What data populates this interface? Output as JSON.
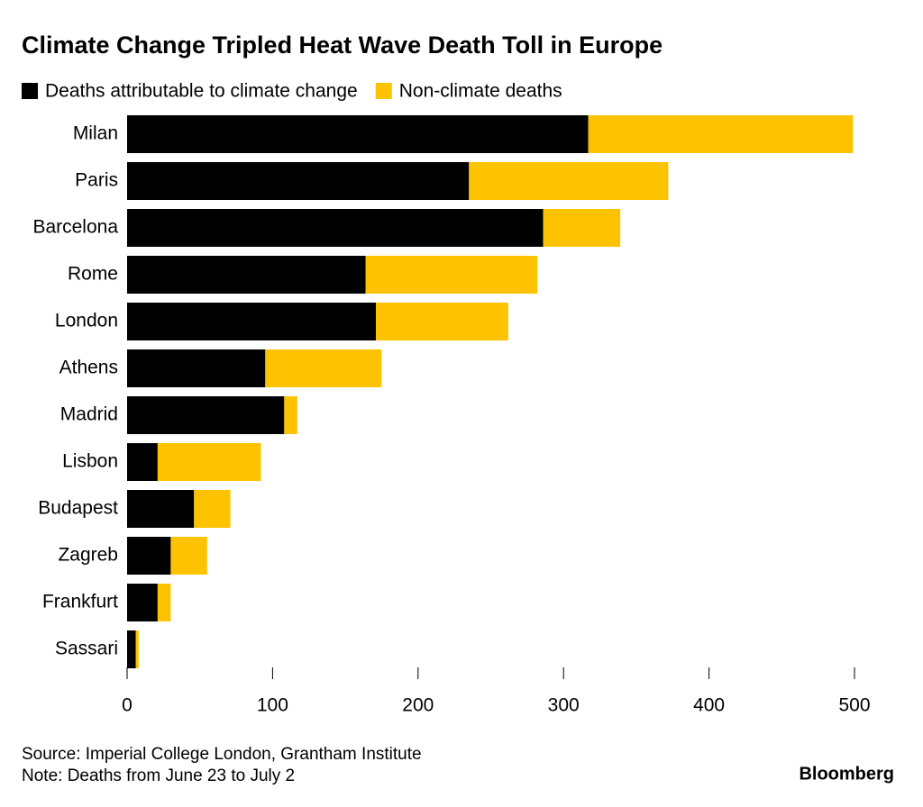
{
  "chart_data": {
    "type": "stacked-barh",
    "title": "Climate Change Tripled Heat Wave Death Toll in Europe",
    "categories": [
      "Milan",
      "Paris",
      "Barcelona",
      "Rome",
      "London",
      "Athens",
      "Madrid",
      "Lisbon",
      "Budapest",
      "Zagreb",
      "Frankfurt",
      "Sassari"
    ],
    "series": [
      {
        "name": "Deaths attributable to climate change",
        "color": "#000000",
        "values": [
          317,
          235,
          286,
          164,
          171,
          95,
          108,
          21,
          46,
          30,
          21,
          6
        ]
      },
      {
        "name": "Non-climate deaths",
        "color": "#fdc300",
        "values": [
          182,
          137,
          53,
          118,
          91,
          80,
          9,
          71,
          25,
          25,
          9,
          2
        ]
      }
    ],
    "xlim": [
      0,
      500
    ],
    "xticks": [
      0,
      100,
      200,
      300,
      400,
      500
    ],
    "source": "Source: Imperial College London, Grantham Institute",
    "note": "Note: Deaths from June 23 to July 2",
    "brand": "Bloomberg"
  }
}
